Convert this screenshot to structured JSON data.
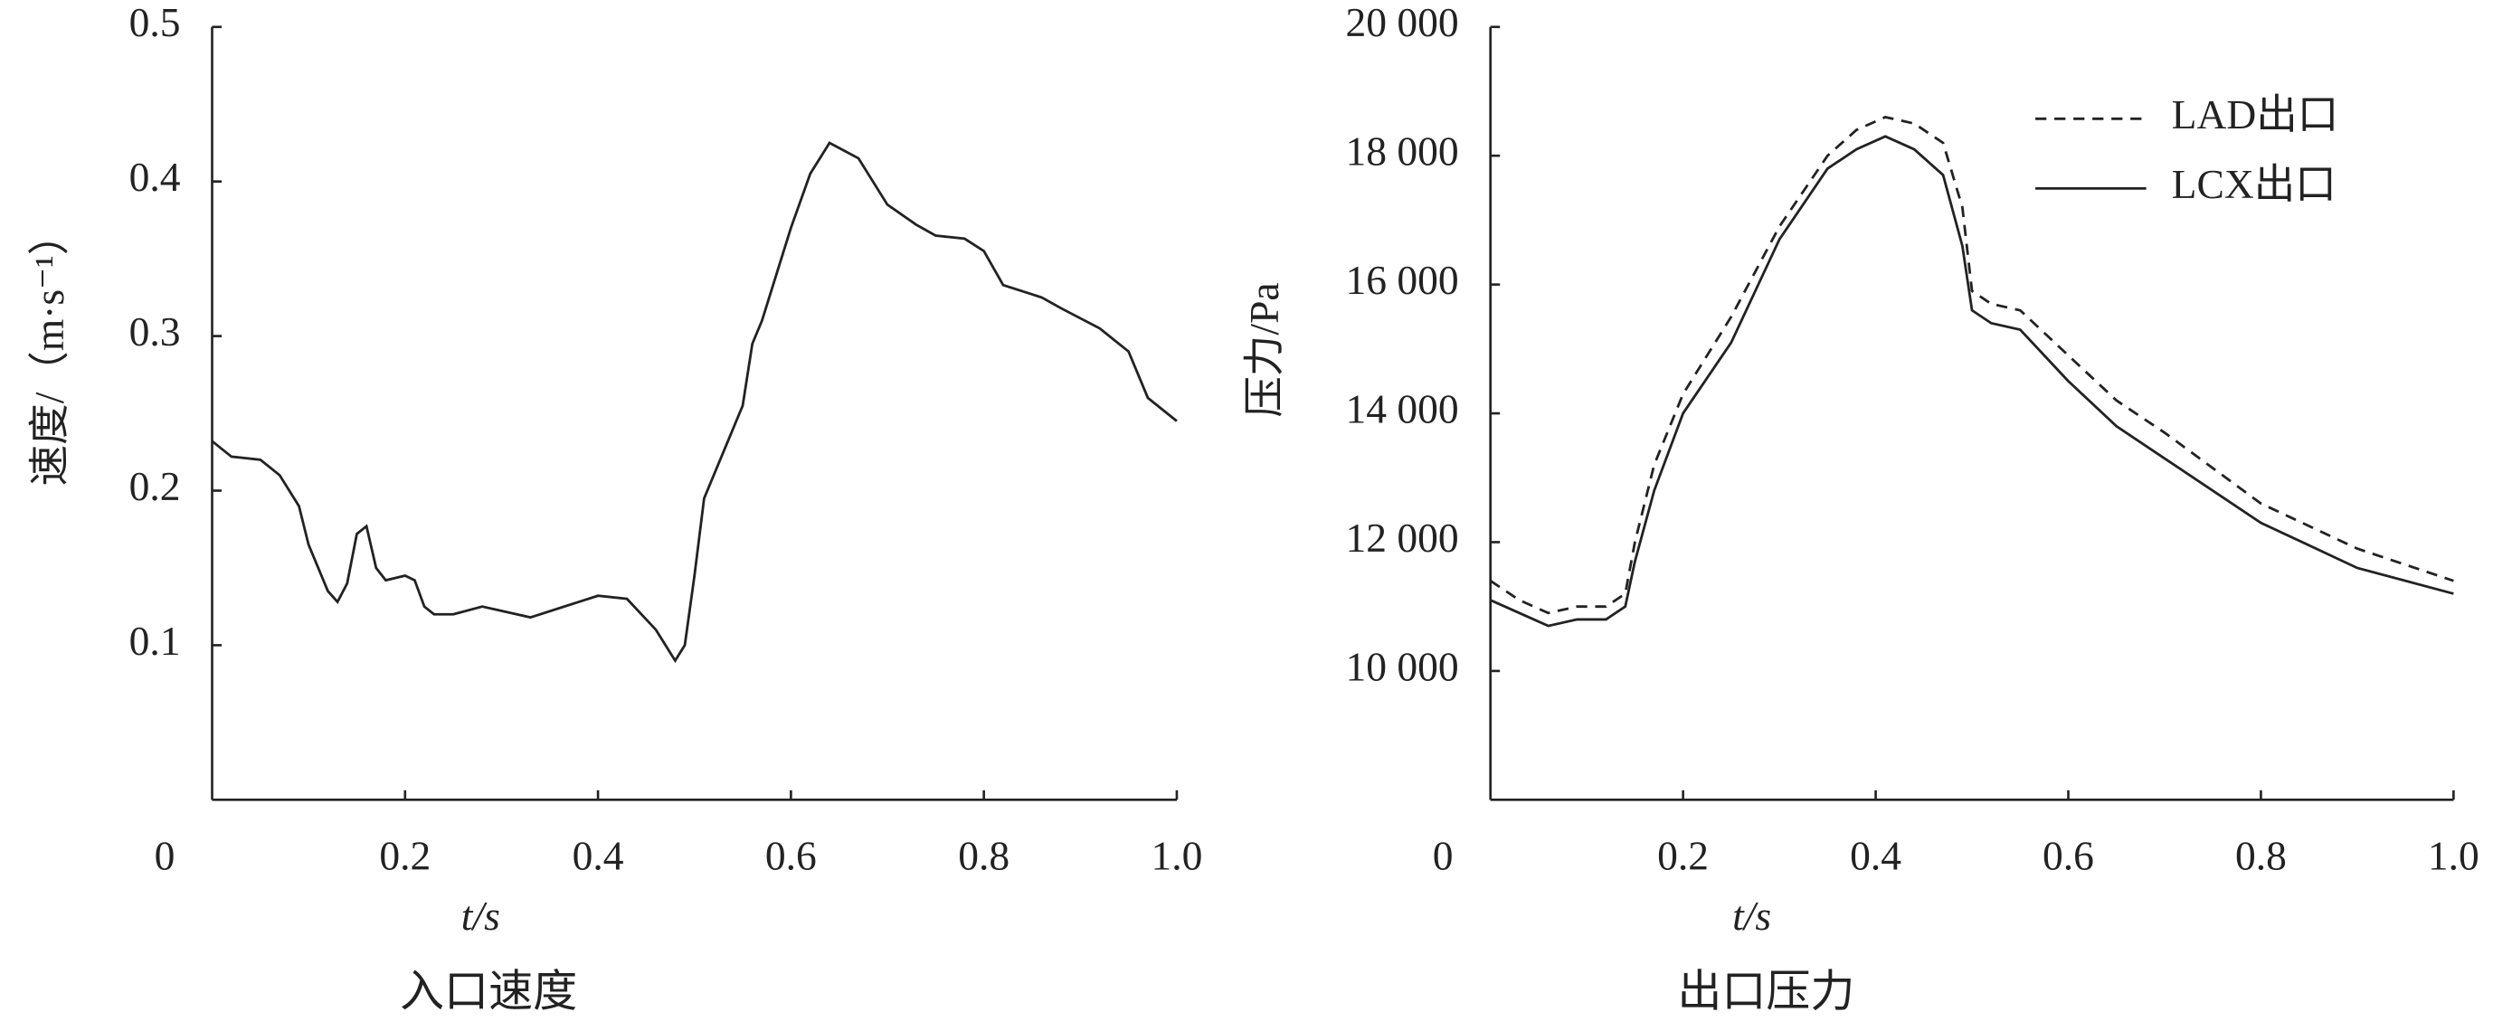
{
  "chart_data": [
    {
      "type": "line",
      "caption": "入口速度",
      "xlabel": "t/s",
      "ylabel": "速度/（m·s⁻¹）",
      "x": [
        0,
        0.02,
        0.05,
        0.07,
        0.09,
        0.1,
        0.11,
        0.12,
        0.13,
        0.14,
        0.15,
        0.16,
        0.17,
        0.18,
        0.2,
        0.21,
        0.22,
        0.23,
        0.25,
        0.28,
        0.33,
        0.38,
        0.4,
        0.43,
        0.46,
        0.48,
        0.49,
        0.5,
        0.51,
        0.53,
        0.55,
        0.56,
        0.57,
        0.58,
        0.6,
        0.62,
        0.64,
        0.67,
        0.7,
        0.73,
        0.75,
        0.78,
        0.8,
        0.82,
        0.86,
        0.88,
        0.92,
        0.95,
        0.97,
        1.0
      ],
      "series": [
        {
          "color": "#222222",
          "values": [
            0.232,
            0.222,
            0.22,
            0.21,
            0.19,
            0.165,
            0.15,
            0.135,
            0.128,
            0.14,
            0.172,
            0.177,
            0.15,
            0.142,
            0.145,
            0.142,
            0.125,
            0.12,
            0.12,
            0.125,
            0.118,
            0.128,
            0.132,
            0.13,
            0.11,
            0.09,
            0.1,
            0.145,
            0.195,
            0.225,
            0.255,
            0.295,
            0.31,
            0.33,
            0.37,
            0.405,
            0.425,
            0.415,
            0.385,
            0.372,
            0.365,
            0.363,
            0.355,
            0.333,
            0.325,
            0.318,
            0.305,
            0.29,
            0.26,
            0.245
          ]
        }
      ],
      "xlim": [
        0,
        1
      ],
      "xticks": [
        0,
        0.2,
        0.4,
        0.6,
        0.8,
        {
          "value": 1,
          "label": "1.0"
        }
      ],
      "ylim": [
        0,
        0.5
      ],
      "yticks": [
        0.1,
        0.2,
        0.3,
        0.4,
        0.5
      ]
    },
    {
      "type": "line",
      "caption": "出口压力",
      "xlabel": "t/s",
      "ylabel": "压力/Pa",
      "legend": "upper right",
      "x": [
        0,
        0.03,
        0.06,
        0.09,
        0.12,
        0.14,
        0.15,
        0.17,
        0.2,
        0.25,
        0.3,
        0.35,
        0.38,
        0.41,
        0.44,
        0.47,
        0.49,
        0.5,
        0.52,
        0.55,
        0.6,
        0.65,
        0.7,
        0.8,
        0.9,
        1.0
      ],
      "series": [
        {
          "name": "LAD出口",
          "color": "#222222",
          "dash": "dashed",
          "values": [
            11400,
            11100,
            10900,
            11000,
            11000,
            11200,
            12000,
            13200,
            14300,
            15500,
            16900,
            18000,
            18400,
            18600,
            18500,
            18200,
            17200,
            15900,
            15700,
            15600,
            14900,
            14200,
            13700,
            12600,
            11900,
            11400
          ]
        },
        {
          "name": "LCX出口",
          "color": "#222222",
          "dash": "solid",
          "values": [
            11100,
            10900,
            10700,
            10800,
            10800,
            11000,
            11700,
            12800,
            14000,
            15100,
            16700,
            17800,
            18100,
            18300,
            18100,
            17700,
            16600,
            15600,
            15400,
            15300,
            14500,
            13800,
            13300,
            12300,
            11600,
            11200
          ]
        }
      ],
      "xlim": [
        0,
        1
      ],
      "xticks": [
        0,
        0.2,
        0.4,
        0.6,
        0.8,
        {
          "value": 1,
          "label": "1.0"
        }
      ],
      "ylim": [
        8000,
        20000
      ],
      "yticks": [
        {
          "value": 10000,
          "label": "10 000"
        },
        {
          "value": 12000,
          "label": "12 000"
        },
        {
          "value": 14000,
          "label": "14 000"
        },
        {
          "value": 16000,
          "label": "16 000"
        },
        {
          "value": 18000,
          "label": "18 000"
        },
        {
          "value": 20000,
          "label": "20 000"
        }
      ]
    }
  ]
}
